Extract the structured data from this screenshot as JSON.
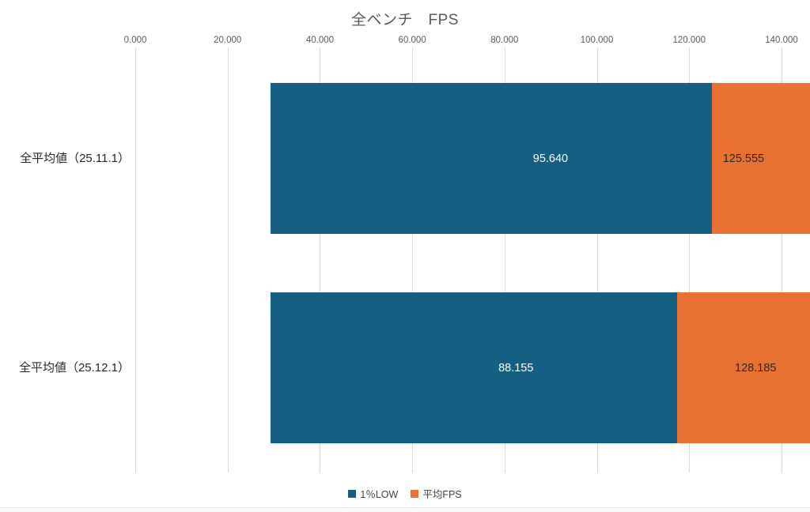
{
  "chart_data": {
    "type": "bar",
    "orientation": "horizontal",
    "overlap": "100%",
    "title": "全ベンチ　FPS",
    "categories": [
      "全平均値（25.11.1）",
      "全平均値（25.12.1）"
    ],
    "series": [
      {
        "name": "1％LOW",
        "values": [
          95.64,
          88.155
        ],
        "labels": [
          "95.640",
          "88.155"
        ],
        "color": "#156082",
        "label_position": "inside-end",
        "label_color": "#ffffff"
      },
      {
        "name": "平均FPS",
        "values": [
          125.555,
          128.185
        ],
        "labels": [
          "125.555",
          "128.185"
        ],
        "color": "#E97132",
        "label_position": "outside-end",
        "label_color": "#262626"
      }
    ],
    "xlim": [
      0,
      140
    ],
    "x_ticks": [
      "0.000",
      "20.000",
      "40.000",
      "60.000",
      "80.000",
      "100.000",
      "120.000",
      "140.000"
    ],
    "x_tick_values": [
      0,
      20,
      40,
      60,
      80,
      100,
      120,
      140
    ],
    "axis_position": "top",
    "grid": true,
    "gridline_color": "#d9d9d9",
    "axis_text_color": "#595959",
    "title_color": "#595959",
    "legend_position": "bottom"
  },
  "legend": {
    "items": [
      {
        "label": "1％LOW",
        "color": "#156082"
      },
      {
        "label": "平均FPS",
        "color": "#E97132"
      }
    ]
  }
}
